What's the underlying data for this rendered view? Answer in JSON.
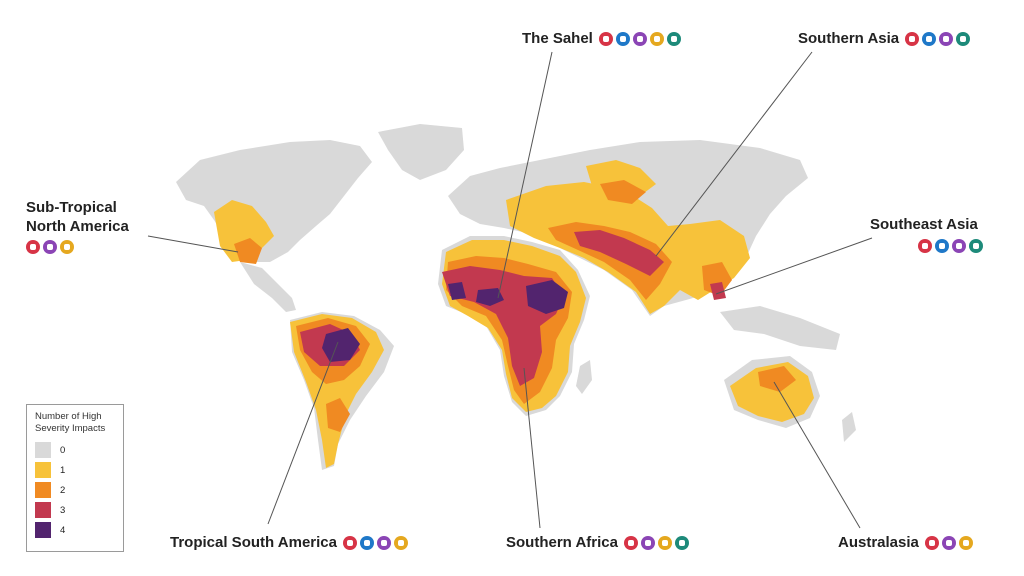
{
  "colors": {
    "land": "#d9d9d9",
    "level1": "#f7c23a",
    "level2": "#f08a22",
    "level3": "#c2394f",
    "level4": "#52246e"
  },
  "legend": {
    "title": "Number of High Severity Impacts",
    "items": [
      {
        "label": "0",
        "color": "#d9d9d9"
      },
      {
        "label": "1",
        "color": "#f7c23a"
      },
      {
        "label": "2",
        "color": "#f08a22"
      },
      {
        "label": "3",
        "color": "#c2394f"
      },
      {
        "label": "4",
        "color": "#52246e"
      }
    ]
  },
  "regions": [
    {
      "name": "The Sahel",
      "icons": [
        "heat-icon",
        "flood-icon",
        "fire-icon",
        "drought-icon",
        "crop-icon"
      ]
    },
    {
      "name": "Southern Asia",
      "icons": [
        "heat-icon",
        "flood-icon",
        "fire-icon",
        "crop-icon"
      ]
    },
    {
      "name": "Sub-Tropical North America",
      "icons": [
        "heat-icon",
        "fire-icon",
        "drought-icon"
      ]
    },
    {
      "name": "Southeast Asia",
      "icons": [
        "heat-icon",
        "flood-icon",
        "fire-icon",
        "crop-icon"
      ]
    },
    {
      "name": "Tropical South America",
      "icons": [
        "heat-icon",
        "flood-icon",
        "fire-icon",
        "drought-icon"
      ]
    },
    {
      "name": "Southern Africa",
      "icons": [
        "heat-icon",
        "fire-icon",
        "drought-icon",
        "crop-icon"
      ]
    },
    {
      "name": "Australasia",
      "icons": [
        "heat-icon",
        "fire-icon",
        "drought-icon"
      ]
    }
  ]
}
